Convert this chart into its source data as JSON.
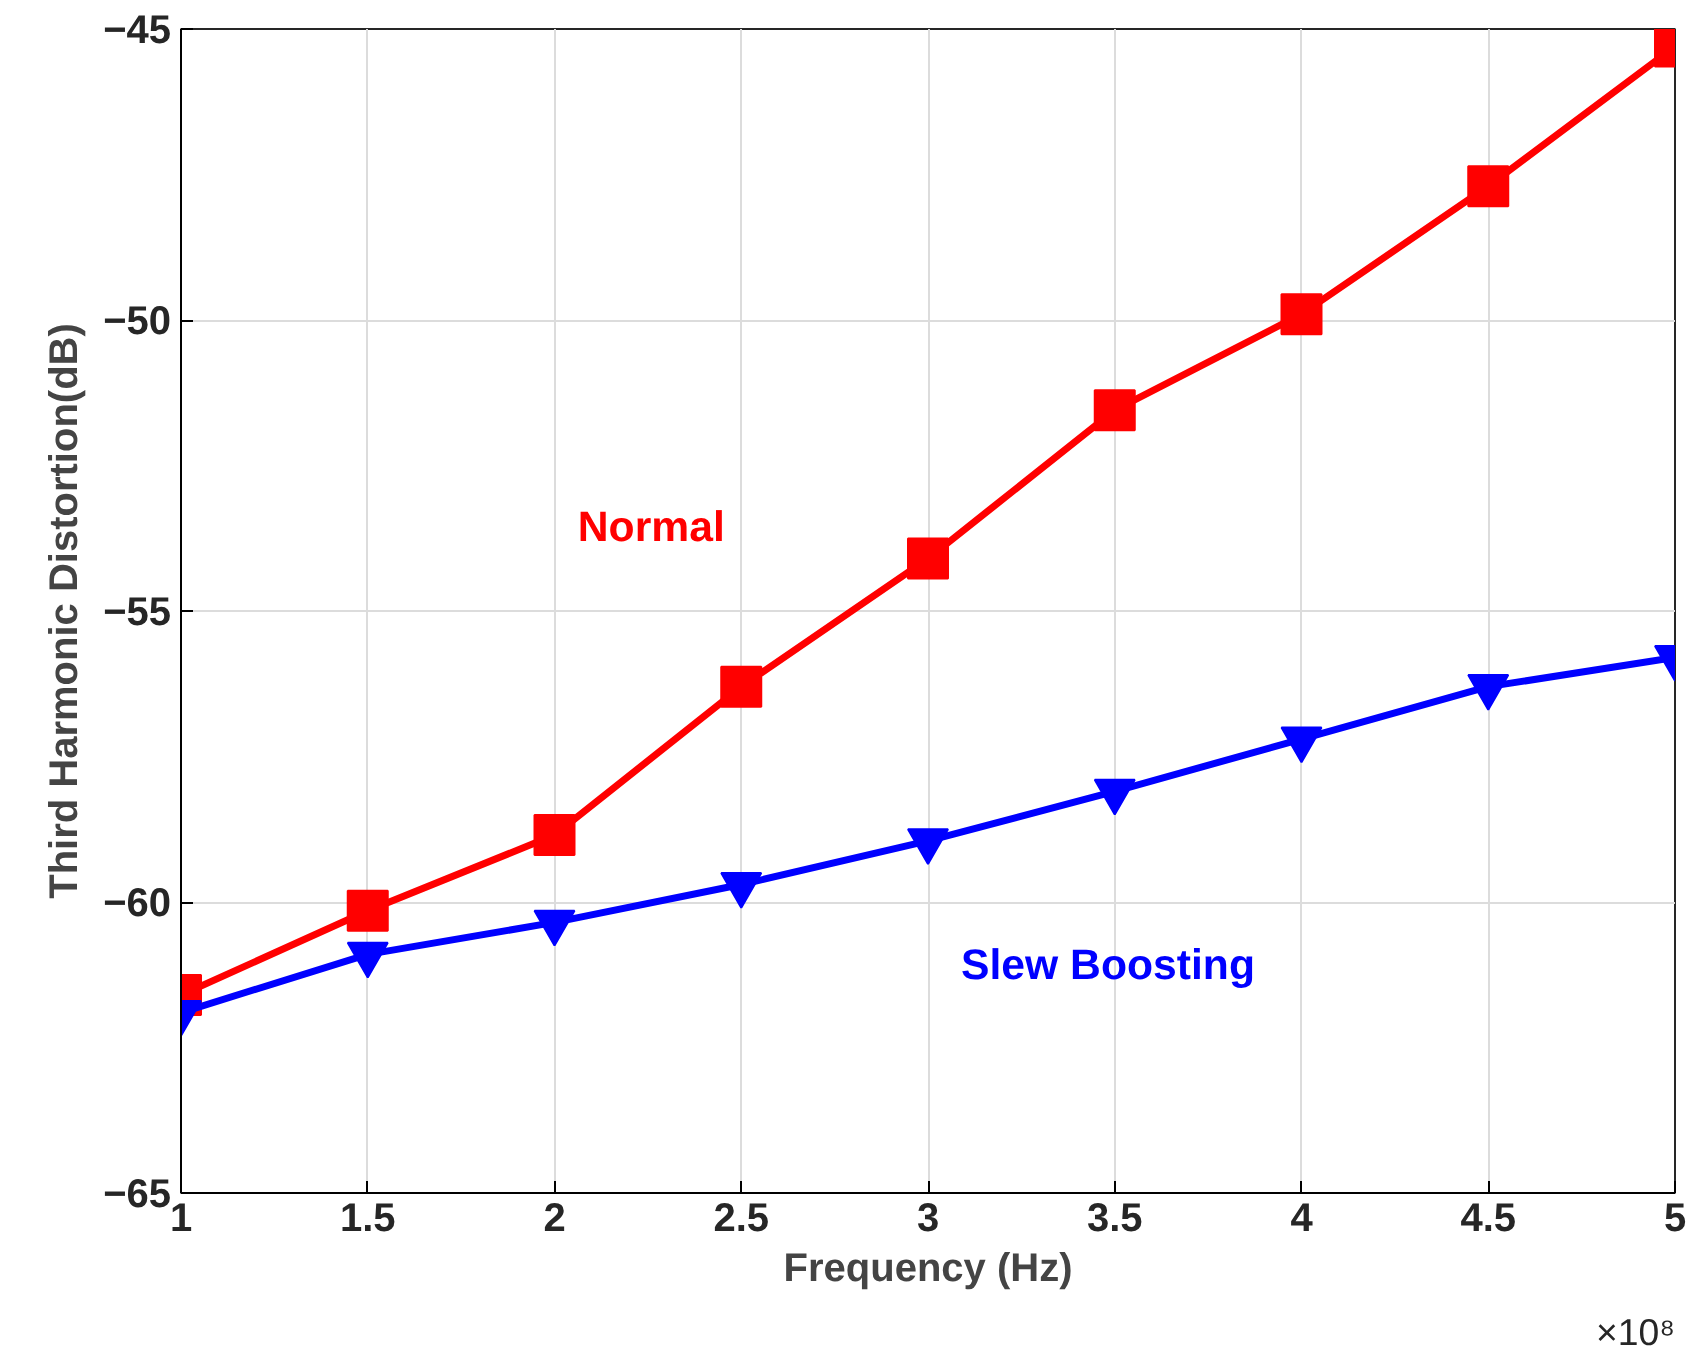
{
  "chart_data": {
    "type": "line",
    "xlabel": "Frequency (Hz)",
    "ylabel": "Third Harmonic Distortion(dB)",
    "x": [
      1,
      1.5,
      2,
      2.5,
      3,
      3.5,
      4,
      4.5,
      5
    ],
    "series": [
      {
        "name": "Normal",
        "color": "#ff0000",
        "marker": "square",
        "values": [
          -61.6,
          -60.15,
          -58.85,
          -56.3,
          -54.1,
          -51.55,
          -49.9,
          -47.7,
          -45.3
        ]
      },
      {
        "name": "Slew Boosting",
        "color": "#0000ff",
        "marker": "triangle",
        "values": [
          -61.9,
          -60.9,
          -60.35,
          -59.7,
          -58.95,
          -58.1,
          -57.2,
          -56.3,
          -55.8
        ]
      }
    ],
    "xlim": [
      1,
      5
    ],
    "ylim": [
      -65,
      -45
    ],
    "xticks": [
      1,
      1.5,
      2,
      2.5,
      3,
      3.5,
      4,
      4.5,
      5
    ],
    "yticks": [
      -65,
      -60,
      -55,
      -50,
      -45
    ],
    "grid": true,
    "annotations": [
      "×10⁸"
    ]
  }
}
